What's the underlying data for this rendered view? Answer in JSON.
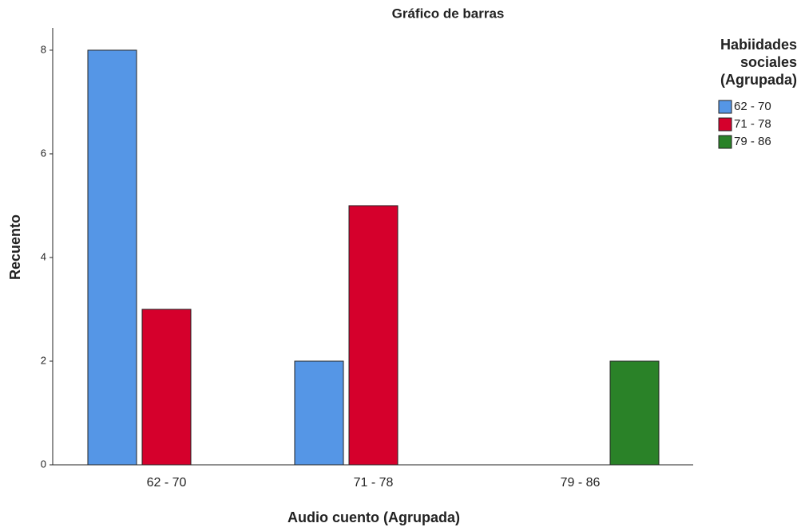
{
  "chart_data": {
    "type": "bar",
    "title": "Gráfico de barras",
    "x_label": "Audio cuento (Agrupada)",
    "y_label": "Recuento",
    "legend_title": [
      "Habiidades",
      "sociales",
      "(Agrupada)"
    ],
    "categories": [
      "62 - 70",
      "71 - 78",
      "79 - 86"
    ],
    "series": [
      {
        "name": "62 - 70",
        "color": "#5596e6",
        "values": [
          8,
          2,
          0
        ]
      },
      {
        "name": "71 - 78",
        "color": "#d5002c",
        "values": [
          3,
          5,
          0
        ]
      },
      {
        "name": "79 - 86",
        "color": "#2a8228",
        "values": [
          0,
          0,
          2
        ]
      }
    ],
    "ylim": [
      0,
      8.43
    ],
    "yticks": [
      0,
      2,
      4,
      6,
      8
    ],
    "grid": false,
    "legend": "right"
  }
}
